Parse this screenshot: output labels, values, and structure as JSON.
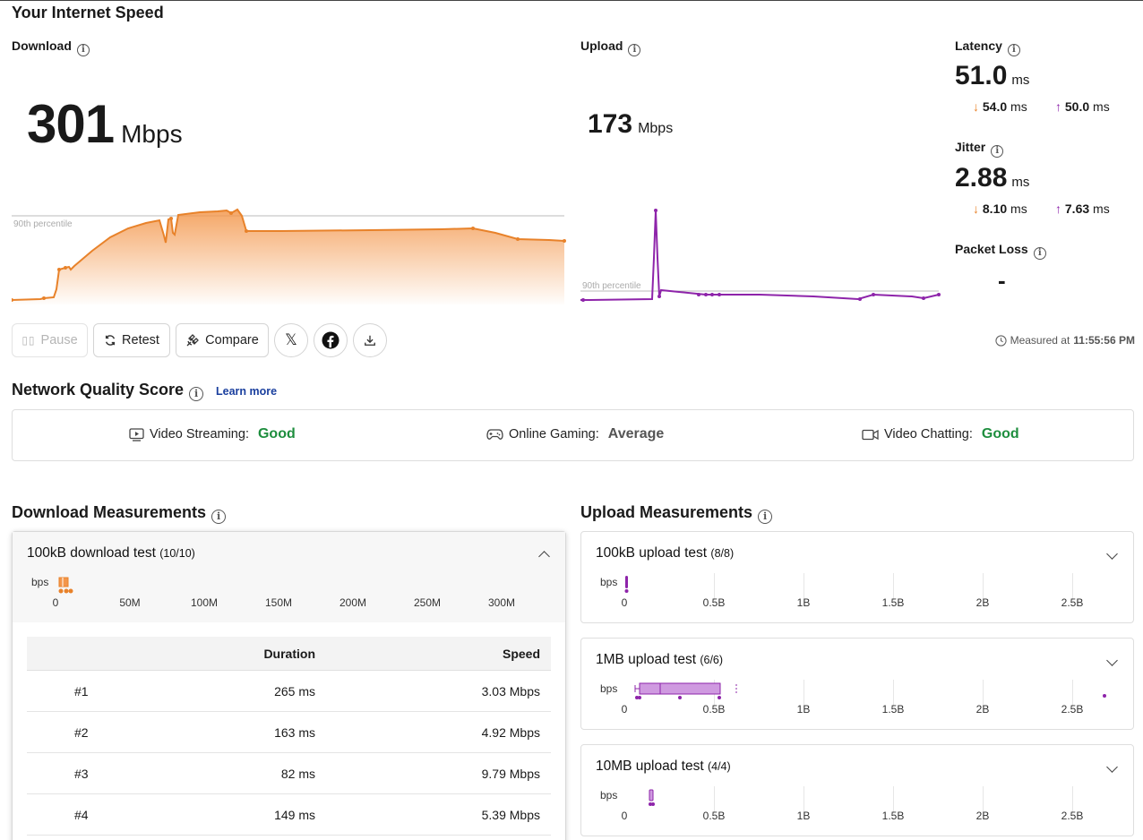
{
  "page_title": "Your Internet Speed",
  "download": {
    "label": "Download",
    "value": "301",
    "unit": "Mbps",
    "percentile_label": "90th percentile",
    "color": "#f0872a"
  },
  "upload": {
    "label": "Upload",
    "value": "173",
    "unit": "Mbps",
    "percentile_label": "90th percentile",
    "color": "#8e24aa"
  },
  "latency": {
    "label": "Latency",
    "value": "51.0",
    "unit": "ms",
    "down": "54.0",
    "down_unit": "ms",
    "up": "50.0",
    "up_unit": "ms"
  },
  "jitter": {
    "label": "Jitter",
    "value": "2.88",
    "unit": "ms",
    "down": "8.10",
    "down_unit": "ms",
    "up": "7.63",
    "up_unit": "ms"
  },
  "packet_loss": {
    "label": "Packet Loss",
    "value": "-"
  },
  "actions": {
    "pause": "Pause",
    "retest": "Retest",
    "compare": "Compare"
  },
  "measured": {
    "prefix": "Measured at",
    "time": "11:55:56 PM"
  },
  "quality": {
    "title": "Network Quality Score",
    "learn_more": "Learn more",
    "video_streaming": {
      "label": "Video Streaming:",
      "value": "Good",
      "color": "#1e8e3e"
    },
    "online_gaming": {
      "label": "Online Gaming:",
      "value": "Average",
      "color": "#555555"
    },
    "video_chatting": {
      "label": "Video Chatting:",
      "value": "Good",
      "color": "#1e8e3e"
    }
  },
  "download_measurements": {
    "title": "Download Measurements",
    "test": {
      "name": "100kB download test",
      "count": "(10/10)",
      "unit": "bps",
      "ticks": [
        "0",
        "50M",
        "100M",
        "150M",
        "200M",
        "250M",
        "300M"
      ]
    },
    "columns": {
      "duration": "Duration",
      "speed": "Speed"
    },
    "rows": [
      {
        "n": "#1",
        "duration": "265 ms",
        "speed": "3.03 Mbps"
      },
      {
        "n": "#2",
        "duration": "163 ms",
        "speed": "4.92 Mbps"
      },
      {
        "n": "#3",
        "duration": "82 ms",
        "speed": "9.79 Mbps"
      },
      {
        "n": "#4",
        "duration": "149 ms",
        "speed": "5.39 Mbps"
      }
    ]
  },
  "upload_measurements": {
    "title": "Upload Measurements",
    "tests": [
      {
        "name": "100kB upload test",
        "count": "(8/8)",
        "unit": "bps"
      },
      {
        "name": "1MB upload test",
        "count": "(6/6)",
        "unit": "bps"
      },
      {
        "name": "10MB upload test",
        "count": "(4/4)",
        "unit": "bps"
      }
    ],
    "ticks": [
      "0",
      "0.5B",
      "1B",
      "1.5B",
      "2B",
      "2.5B"
    ]
  }
}
